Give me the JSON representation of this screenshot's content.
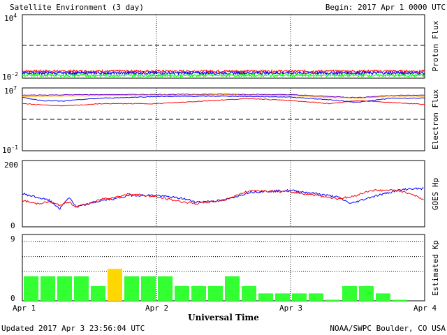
{
  "header": {
    "title": "Satellite Environment (3 day)",
    "begin": "Begin:  2017 Apr 1 0000 UTC"
  },
  "footer": {
    "updated": "Updated 2017 Apr  3 23:56:04 UTC",
    "credit": "NOAA/SWPC Boulder, CO USA"
  },
  "colors": {
    "red": "#ff0000",
    "blue": "#0000ff",
    "green": "#00ff00",
    "orange": "#ffa500",
    "purple": "#6a00c8",
    "kp_green": "#33ff33",
    "kp_yellow": "#ffd700"
  },
  "chart_data": [
    {
      "type": "line",
      "panel": "proton",
      "ylabel": "Proton Flux",
      "yscale": "log",
      "ylim": [
        0.01,
        10000
      ],
      "y_tick_labels": [
        "10^4",
        "10^-2"
      ],
      "threshold_dashed": 10,
      "xlim_days": [
        0,
        3
      ],
      "series": [
        {
          "color": "red",
          "level": 0.045
        },
        {
          "color": "blue",
          "level": 0.03
        },
        {
          "color": "green",
          "level": 0.018
        }
      ]
    },
    {
      "type": "line",
      "panel": "electron",
      "ylabel": "Electron Flux",
      "yscale": "log",
      "ylim": [
        0.1,
        10000000
      ],
      "y_tick_labels": [
        "10^7",
        "10^-1"
      ],
      "threshold_dashed": 1000,
      "xlim_days": [
        0,
        3
      ],
      "series": [
        {
          "color": "purple",
          "x": [
            0,
            0.5,
            1.0,
            1.5,
            2.0,
            2.3,
            2.5,
            2.75,
            3.0
          ],
          "y": [
            1200000,
            1400000,
            1500000,
            1600000,
            1400000,
            800000,
            600000,
            1100000,
            1200000
          ]
        },
        {
          "color": "orange",
          "x": [
            0,
            0.5,
            1.0,
            1.5,
            2.0,
            2.3,
            2.5,
            2.75,
            3.0
          ],
          "y": [
            800000,
            1000000,
            1200000,
            1300000,
            1100000,
            600000,
            500000,
            900000,
            900000
          ]
        },
        {
          "color": "blue",
          "x": [
            0,
            0.15,
            0.3,
            0.45,
            0.6,
            1.0,
            1.5,
            2.0,
            2.3,
            2.5,
            2.75,
            3.0
          ],
          "y": [
            600000,
            250000,
            200000,
            350000,
            500000,
            800000,
            900000,
            700000,
            300000,
            150000,
            500000,
            500000
          ]
        },
        {
          "color": "red",
          "x": [
            0,
            0.3,
            0.6,
            1.0,
            1.5,
            1.7,
            2.0,
            2.3,
            2.5,
            3.0
          ],
          "y": [
            100000,
            50000,
            100000,
            100000,
            300000,
            450000,
            250000,
            100000,
            250000,
            80000
          ]
        }
      ]
    },
    {
      "type": "line",
      "panel": "goes_hp",
      "ylabel": "GOES Hp",
      "ylim": [
        0,
        200
      ],
      "y_tick_labels": [
        "200",
        "0"
      ],
      "xlim_days": [
        0,
        3
      ],
      "series": [
        {
          "color": "blue",
          "x": [
            0,
            0.1,
            0.2,
            0.28,
            0.35,
            0.4,
            0.5,
            0.6,
            0.7,
            0.8,
            1.0,
            1.2,
            1.3,
            1.5,
            1.7,
            2.0,
            2.2,
            2.35,
            2.45,
            2.6,
            2.8,
            2.9,
            3.0
          ],
          "y": [
            100,
            90,
            80,
            55,
            90,
            60,
            70,
            80,
            85,
            95,
            95,
            85,
            75,
            80,
            105,
            110,
            100,
            90,
            70,
            90,
            110,
            115,
            115
          ]
        },
        {
          "color": "red",
          "x": [
            0,
            0.1,
            0.2,
            0.28,
            0.35,
            0.4,
            0.5,
            0.6,
            0.7,
            0.8,
            1.0,
            1.2,
            1.3,
            1.5,
            1.7,
            2.0,
            2.2,
            2.35,
            2.45,
            2.6,
            2.8,
            2.9,
            3.0
          ],
          "y": [
            80,
            70,
            75,
            65,
            75,
            60,
            70,
            85,
            90,
            100,
            90,
            75,
            70,
            80,
            110,
            105,
            95,
            85,
            90,
            110,
            110,
            100,
            80
          ]
        }
      ]
    },
    {
      "type": "bar",
      "panel": "kp",
      "ylabel": "Estimated Kp",
      "ylim": [
        0,
        9
      ],
      "y_tick_labels": [
        "9",
        "0"
      ],
      "dotted_levels": [
        4,
        6,
        8
      ],
      "xlim_days": [
        0,
        3
      ],
      "bars_per_day": 8,
      "values": [
        3.33,
        3.33,
        3.33,
        3.33,
        2.0,
        4.33,
        3.33,
        3.33,
        3.33,
        2.0,
        2.0,
        2.0,
        3.33,
        2.0,
        1.0,
        1.0,
        1.0,
        1.0,
        0.0,
        2.0,
        2.0,
        1.0,
        0.0,
        null
      ],
      "bar_colors": [
        "green",
        "green",
        "green",
        "green",
        "green",
        "yellow",
        "green",
        "green",
        "green",
        "green",
        "green",
        "green",
        "green",
        "green",
        "green",
        "green",
        "green",
        "green",
        "green",
        "green",
        "green",
        "green",
        "green",
        "green"
      ]
    }
  ],
  "x_axis": {
    "title": "Universal Time",
    "tick_labels": [
      "Apr 1",
      "Apr 2",
      "Apr 3",
      "Apr 4"
    ]
  }
}
